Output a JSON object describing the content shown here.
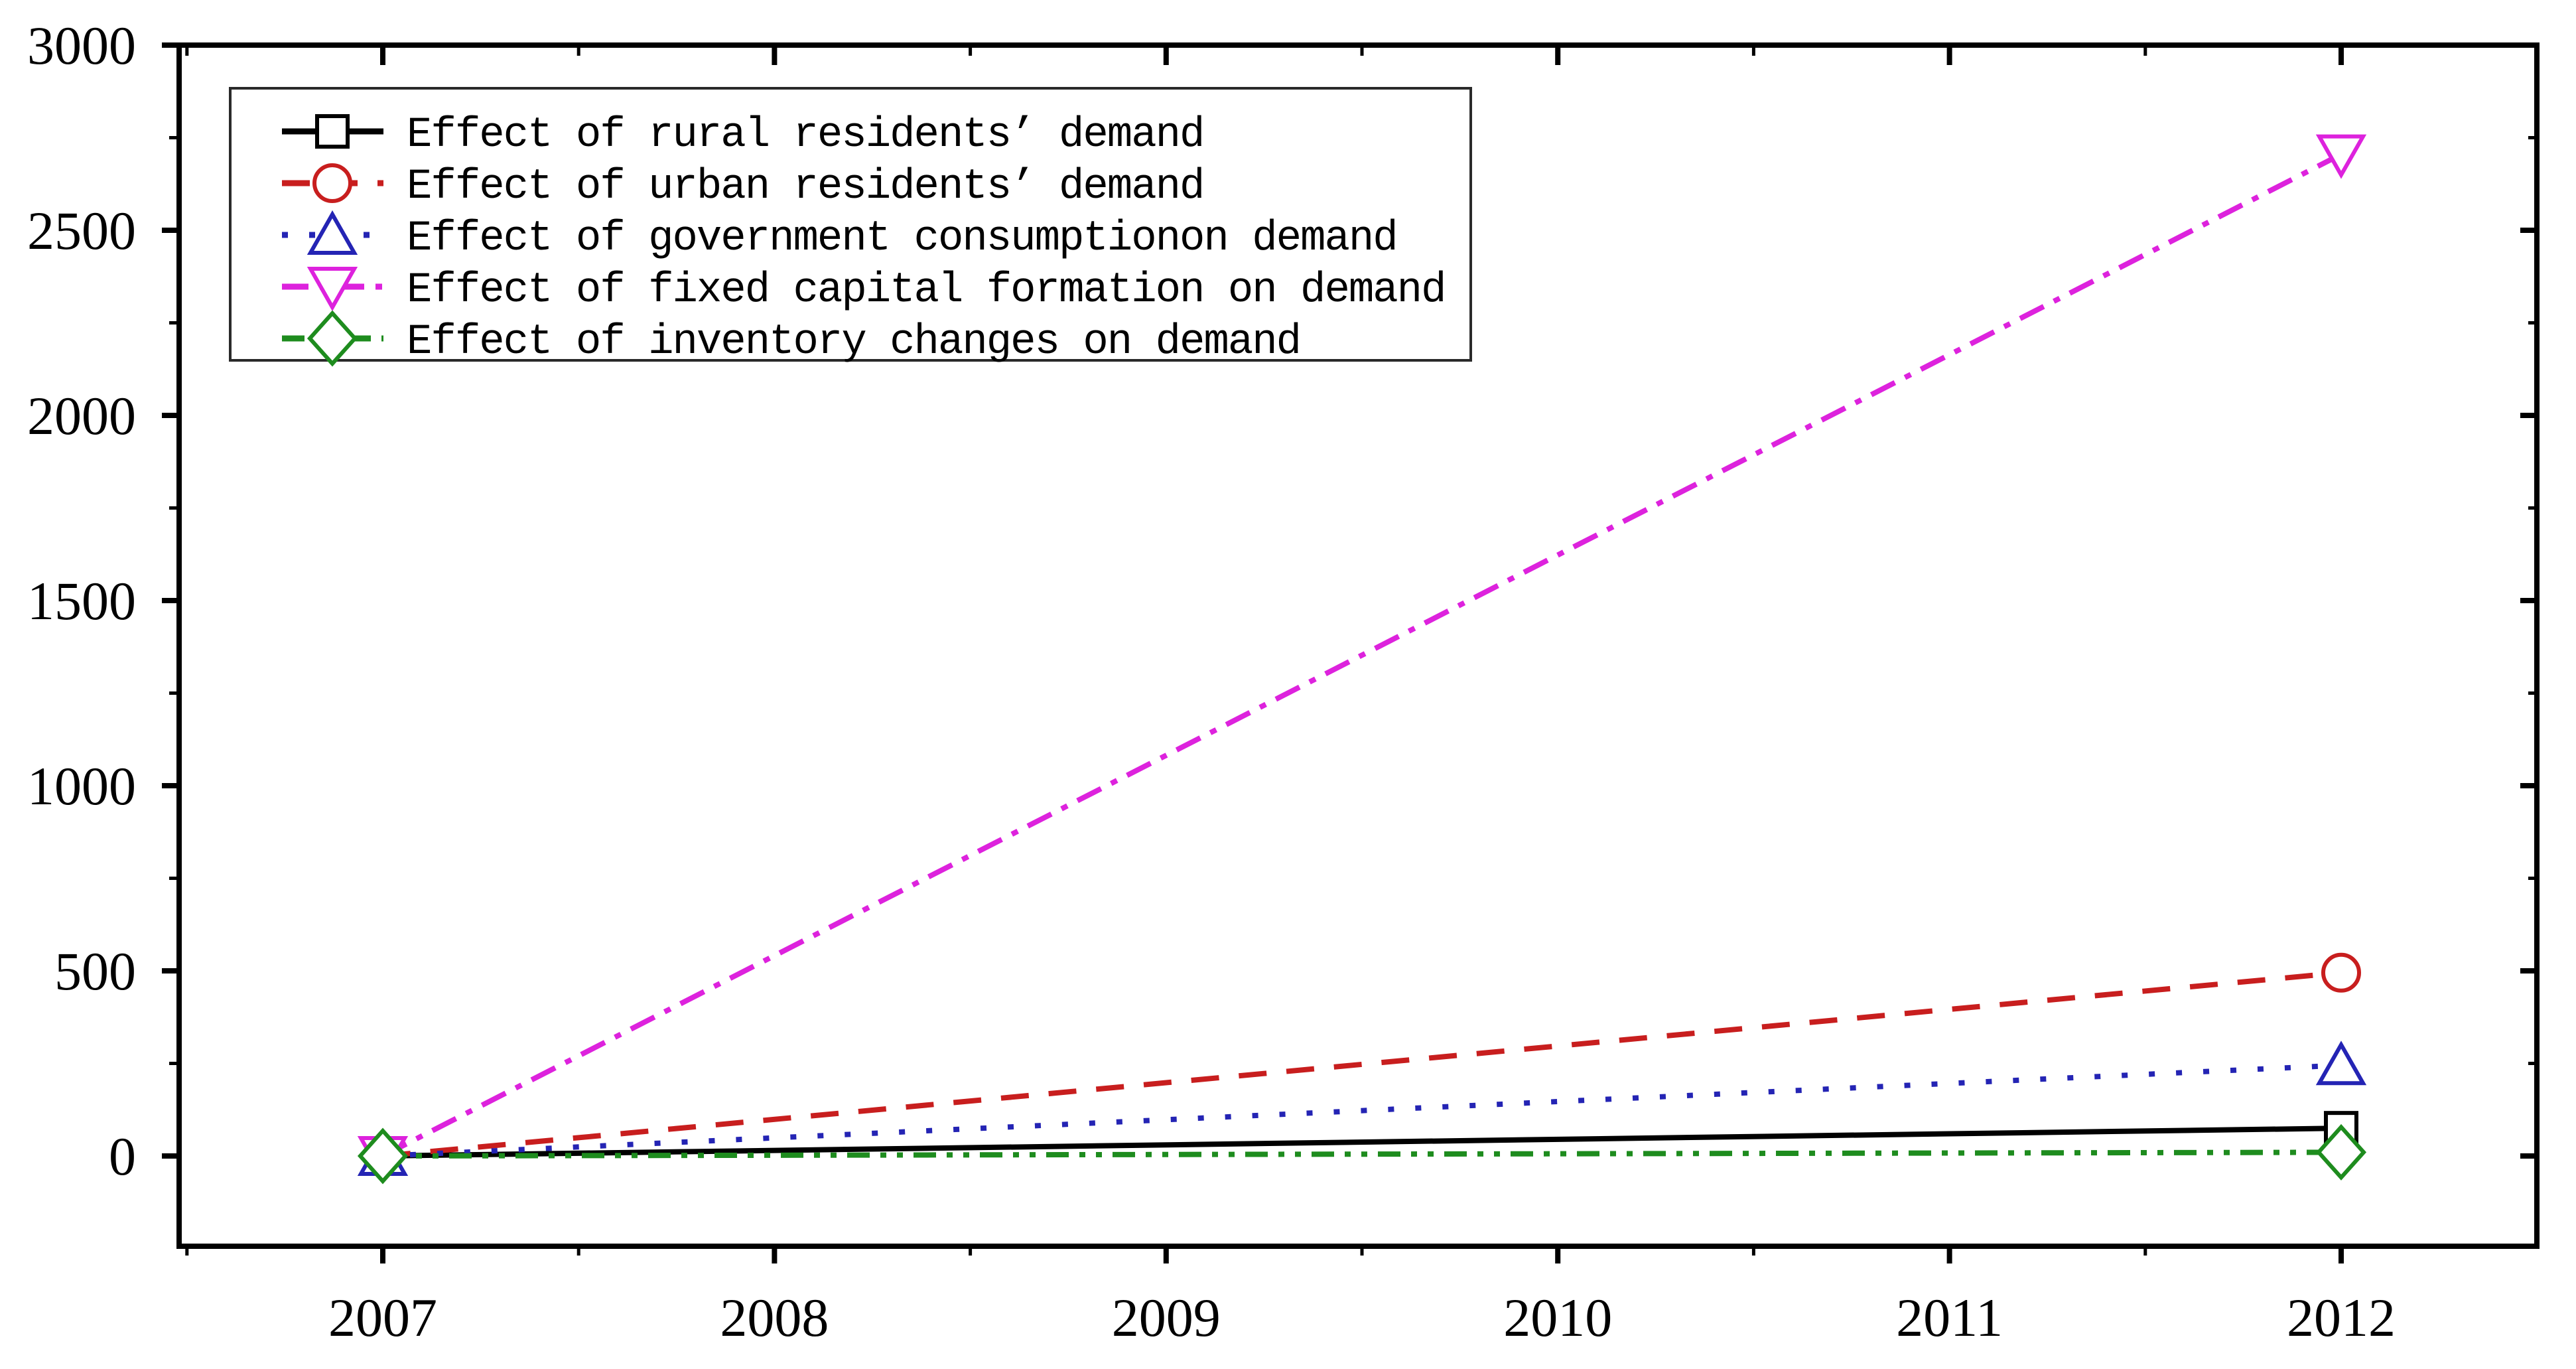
{
  "figure": {
    "background": "#ffffff",
    "frame_color": "#000000",
    "legend": {
      "position": "upper-left",
      "border_color": "#2a2a2a",
      "entries": [
        {
          "label": "Effect of rural residents’ demand"
        },
        {
          "label": "Effect of urban residents’ demand"
        },
        {
          "label": "Effect of government consumptionon demand"
        },
        {
          "label": "Effect of fixed capital formation on demand"
        },
        {
          "label": "Effect of inventory changes on demand"
        }
      ]
    },
    "x_axis": {
      "tick_labels": [
        "2007",
        "2008",
        "2009",
        "2010",
        "2011",
        "2012"
      ],
      "tick_values": [
        2007,
        2008,
        2009,
        2010,
        2011,
        2012
      ],
      "minor_tick_values": [
        2006.5,
        2007.5,
        2008.5,
        2009.5,
        2010.5,
        2011.5
      ],
      "range": [
        2006.48,
        2012.5
      ]
    },
    "y_axis": {
      "tick_labels": [
        "0",
        "500",
        "1000",
        "1500",
        "2000",
        "2500",
        "3000"
      ],
      "tick_values": [
        0,
        500,
        1000,
        1500,
        2000,
        2500,
        3000
      ],
      "minor_tick_values": [
        250,
        750,
        1250,
        1750,
        2250,
        2750
      ],
      "range": [
        -244,
        3000
      ]
    }
  },
  "chart_data": {
    "type": "line",
    "x": [
      2007,
      2012
    ],
    "series": [
      {
        "name": "Effect of rural residents’ demand",
        "color": "#000000",
        "line_style": "solid",
        "marker": "square",
        "values": [
          0,
          75
        ]
      },
      {
        "name": "Effect of urban residents’ demand",
        "color": "#c81e1e",
        "line_style": "dashed",
        "marker": "circle",
        "values": [
          0,
          495
        ]
      },
      {
        "name": "Effect of government consumptionon demand",
        "color": "#2424b4",
        "line_style": "dotted",
        "marker": "triangle-up",
        "values": [
          0,
          245
        ]
      },
      {
        "name": "Effect of fixed capital formation on demand",
        "color": "#dd22dd",
        "line_style": "dash-dot",
        "marker": "triangle-down",
        "values": [
          0,
          2705
        ]
      },
      {
        "name": "Effect of inventory changes on demand",
        "color": "#1e8c1e",
        "line_style": "dash-dot-dot",
        "marker": "diamond",
        "values": [
          0,
          10
        ]
      }
    ],
    "title": "",
    "xlabel": "",
    "ylabel": "",
    "xlim": [
      2006.48,
      2012.5
    ],
    "ylim": [
      -244,
      3000
    ],
    "grid": false,
    "legend_position": "upper-left"
  }
}
